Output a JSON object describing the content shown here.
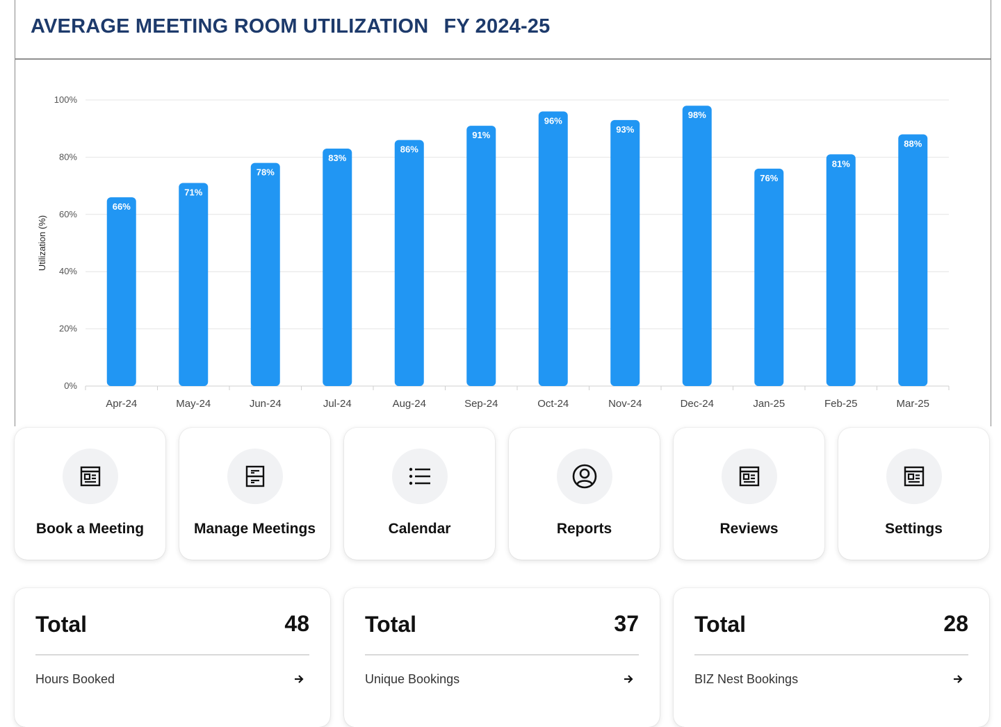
{
  "header": {
    "title": "AVERAGE MEETING ROOM UTILIZATION",
    "fiscal_year": "FY 2024-25"
  },
  "chart_data": {
    "type": "bar",
    "title": "AVERAGE MEETING ROOM UTILIZATION",
    "subtitle": "FY 2024-25",
    "ylabel": "Utilization (%)",
    "xlabel": "",
    "categories": [
      "Apr-24",
      "May-24",
      "Jun-24",
      "Jul-24",
      "Aug-24",
      "Sep-24",
      "Oct-24",
      "Nov-24",
      "Dec-24",
      "Jan-25",
      "Feb-25",
      "Mar-25"
    ],
    "values": [
      66,
      71,
      78,
      83,
      86,
      91,
      96,
      93,
      98,
      76,
      81,
      88
    ],
    "data_labels": [
      "66%",
      "71%",
      "78%",
      "83%",
      "86%",
      "91%",
      "96%",
      "93%",
      "98%",
      "76%",
      "81%",
      "88%"
    ],
    "ylim": [
      0,
      100
    ],
    "yticks": [
      0,
      20,
      40,
      60,
      80,
      100
    ],
    "ytick_labels": [
      "0%",
      "20%",
      "40%",
      "60%",
      "80%",
      "100%"
    ],
    "grid": true,
    "legend": "none",
    "bar_color": "#2196f3"
  },
  "actions": [
    {
      "label": "Book a Meeting",
      "icon": "article-icon"
    },
    {
      "label": "Manage Meetings",
      "icon": "dns-icon"
    },
    {
      "label": "Calendar",
      "icon": "list-icon"
    },
    {
      "label": "Reports",
      "icon": "account-circle-icon"
    },
    {
      "label": "Reviews",
      "icon": "article-icon"
    },
    {
      "label": "Settings",
      "icon": "article-icon"
    }
  ],
  "stats": [
    {
      "title": "Total",
      "value": "48",
      "label": "Hours Booked",
      "icon": "arrow-right-icon"
    },
    {
      "title": "Total",
      "value": "37",
      "label": "Unique Bookings",
      "icon": "arrow-right-icon"
    },
    {
      "title": "Total",
      "value": "28",
      "label": "BIZ Nest Bookings",
      "icon": "arrow-right-icon"
    }
  ],
  "colors": {
    "accent": "#2196f3",
    "title": "#1d3a6b",
    "icon_bg": "#f1f2f4"
  }
}
